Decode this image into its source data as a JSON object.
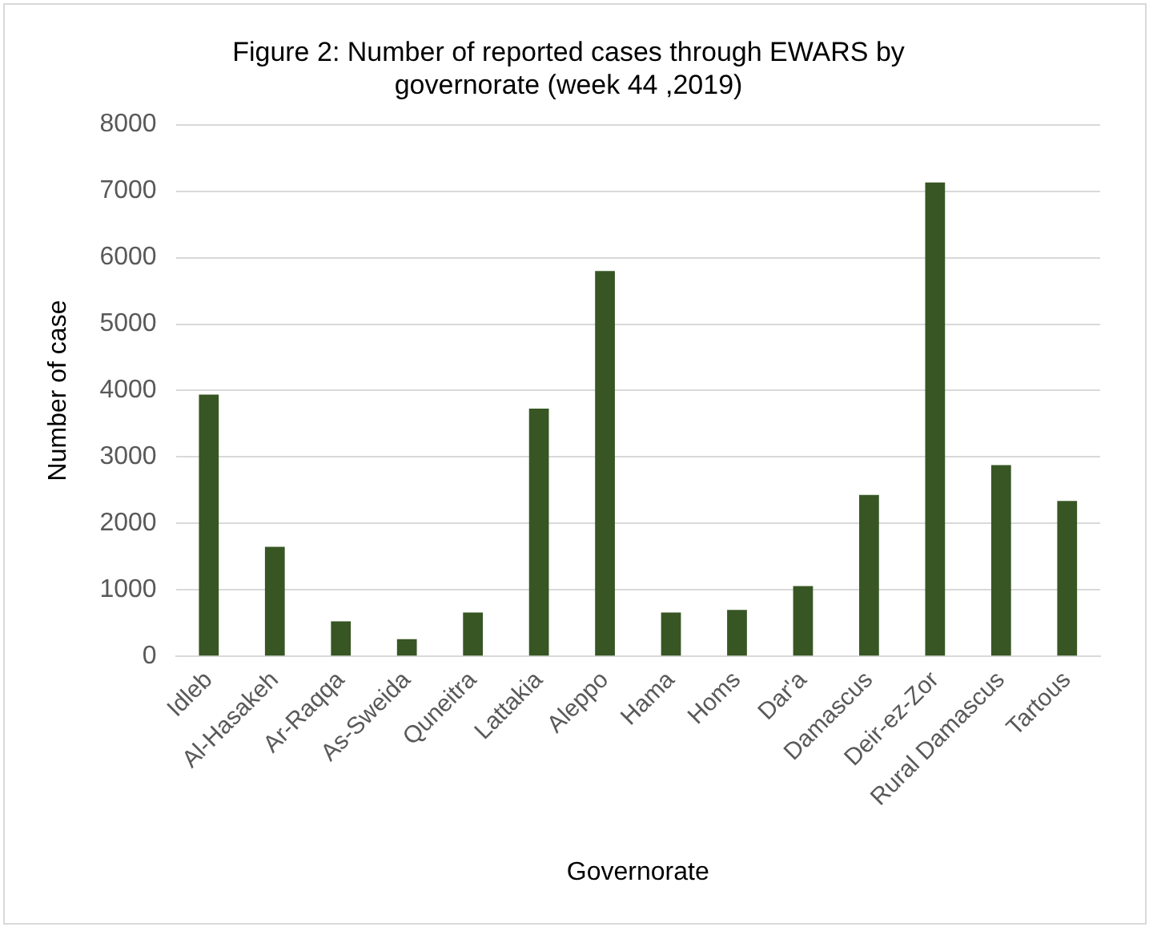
{
  "chart_data": {
    "type": "bar",
    "title": [
      "Figure 2: Number of reported cases through EWARS by",
      "governorate (week 44 ,2019)"
    ],
    "xlabel": "Governorate",
    "ylabel": "Number of case",
    "categories": [
      "Idleb",
      "Al-Hasakeh",
      "Ar-Raqqa",
      "As-Sweida",
      "Quneitra",
      "Lattakia",
      "Aleppo",
      "Hama",
      "Homs",
      "Dar'a",
      "Damascus",
      "Deir-ez-Zor",
      "Rural Damascus",
      "Tartous"
    ],
    "values": [
      3940,
      1650,
      530,
      260,
      660,
      3730,
      5800,
      660,
      700,
      1060,
      2430,
      7130,
      2880,
      2340
    ],
    "color": "#375623",
    "ylim": [
      0,
      8000
    ],
    "yticks": [
      0,
      1000,
      2000,
      3000,
      4000,
      5000,
      6000,
      7000,
      8000
    ],
    "grid": "y",
    "legend": false
  }
}
